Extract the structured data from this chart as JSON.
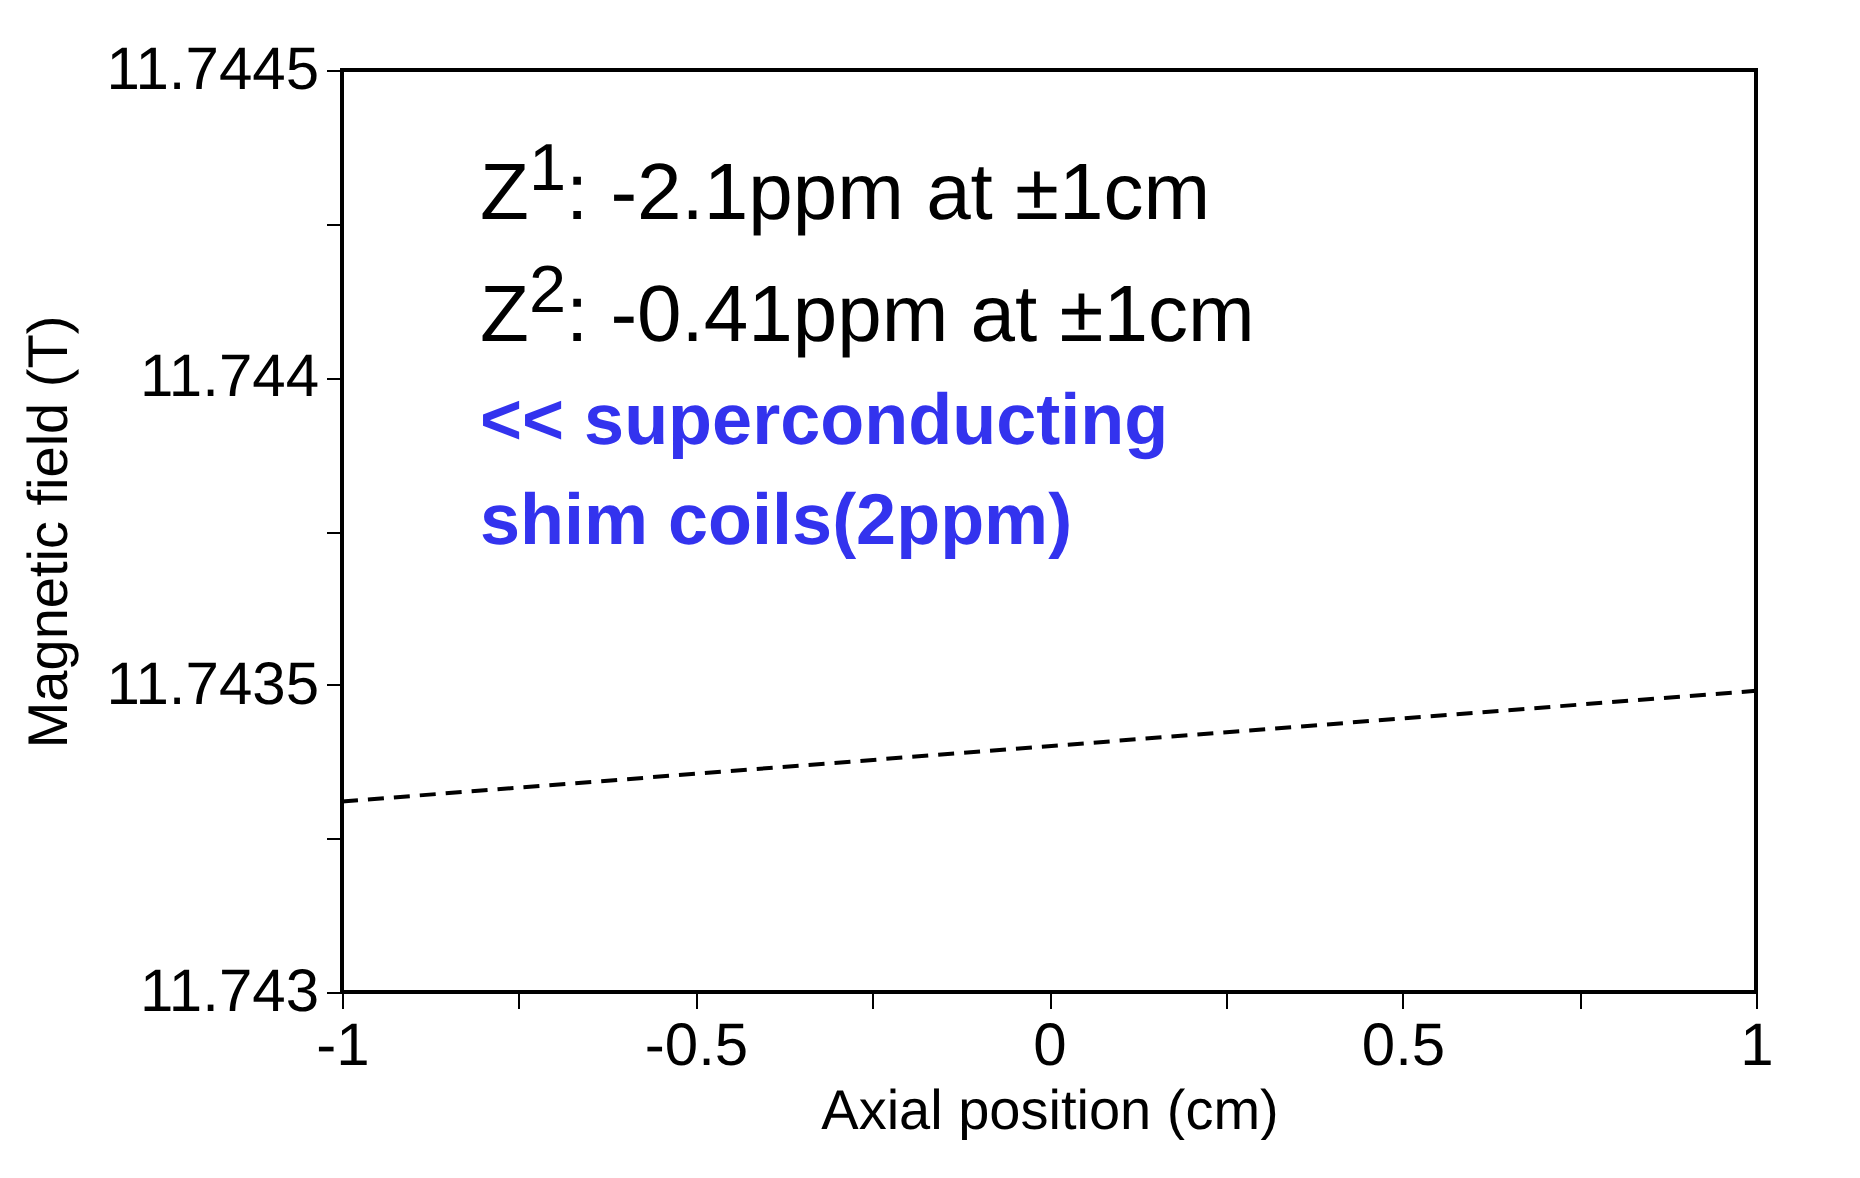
{
  "chart_data": {
    "type": "line",
    "xlabel": "Axial position (cm)",
    "ylabel": "Magnetic field (T)",
    "x": [
      -1,
      1
    ],
    "series": [
      {
        "color": "#000000",
        "values": [
          11.74331,
          11.74349
        ]
      }
    ],
    "line_style": "dashed",
    "marker": "none",
    "grid": false,
    "xlim": [
      -1,
      1
    ],
    "ylim": [
      11.743,
      11.7445
    ],
    "xticks": [
      -1,
      {
        "value": -0.75,
        "label": null
      },
      -0.5,
      {
        "value": -0.25,
        "label": null
      },
      0,
      {
        "value": 0.25,
        "label": null
      },
      0.5,
      {
        "value": 0.75,
        "label": null
      },
      1
    ],
    "yticks": [
      11.743,
      {
        "value": 11.74325,
        "label": null
      },
      11.7435,
      {
        "value": 11.74375,
        "label": null
      },
      11.744,
      {
        "value": 11.74425,
        "label": null
      },
      11.7445
    ],
    "annotations": [
      "Z$^{1}$: -2.1ppm at ±1cm",
      "Z$^{2}$: -0.41ppm at ±1cm",
      "<< superconducting shim coils(2ppm)"
    ]
  }
}
